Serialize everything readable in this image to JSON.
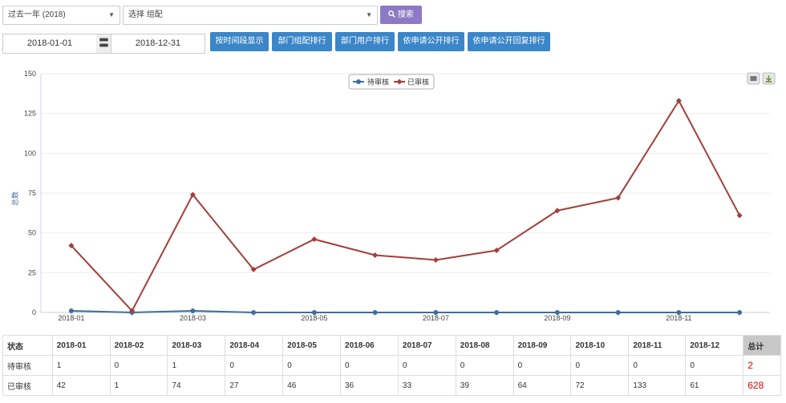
{
  "filters": {
    "period": "过去一年 (2018)",
    "group": "选择 组配",
    "search_label": "搜索",
    "search_icon": "search-icon",
    "date_start": "2018-01-01",
    "date_end": "2018-12-31",
    "date_separator": "〓"
  },
  "actions": [
    "按时间段显示",
    "部门组配排行",
    "部门用户排行",
    "依申请公开排行",
    "依申请公开回复排行"
  ],
  "chart_data": {
    "type": "line",
    "ylabel": "总数",
    "ylim": [
      0,
      150
    ],
    "yticks": [
      0,
      25,
      50,
      75,
      100,
      125,
      150
    ],
    "categories": [
      "2018-01",
      "2018-02",
      "2018-03",
      "2018-04",
      "2018-05",
      "2018-06",
      "2018-07",
      "2018-08",
      "2018-09",
      "2018-10",
      "2018-11",
      "2018-12"
    ],
    "xtick_labels": [
      "2018-01",
      "2018-03",
      "2018-05",
      "2018-07",
      "2018-09",
      "2018-11"
    ],
    "series": [
      {
        "name": "待审核",
        "color": "#3e6e9c",
        "marker": "circle",
        "values": [
          1,
          0,
          1,
          0,
          0,
          0,
          0,
          0,
          0,
          0,
          0,
          0
        ]
      },
      {
        "name": "已审核",
        "color": "#a23f3a",
        "marker": "diamond",
        "values": [
          42,
          1,
          74,
          27,
          46,
          36,
          33,
          39,
          64,
          72,
          133,
          61
        ]
      }
    ],
    "legend": "top-center",
    "grid": true
  },
  "table": {
    "status_header": "状态",
    "months": [
      "2018-01",
      "2018-02",
      "2018-03",
      "2018-04",
      "2018-05",
      "2018-06",
      "2018-07",
      "2018-08",
      "2018-09",
      "2018-10",
      "2018-11",
      "2018-12"
    ],
    "total_header": "总计",
    "rows": [
      {
        "label": "待审核",
        "values": [
          "1",
          "0",
          "1",
          "0",
          "0",
          "0",
          "0",
          "0",
          "0",
          "0",
          "0",
          "0"
        ],
        "total": "2"
      },
      {
        "label": "已审核",
        "values": [
          "42",
          "1",
          "74",
          "27",
          "46",
          "36",
          "33",
          "39",
          "64",
          "72",
          "133",
          "61"
        ],
        "total": "628"
      }
    ]
  }
}
